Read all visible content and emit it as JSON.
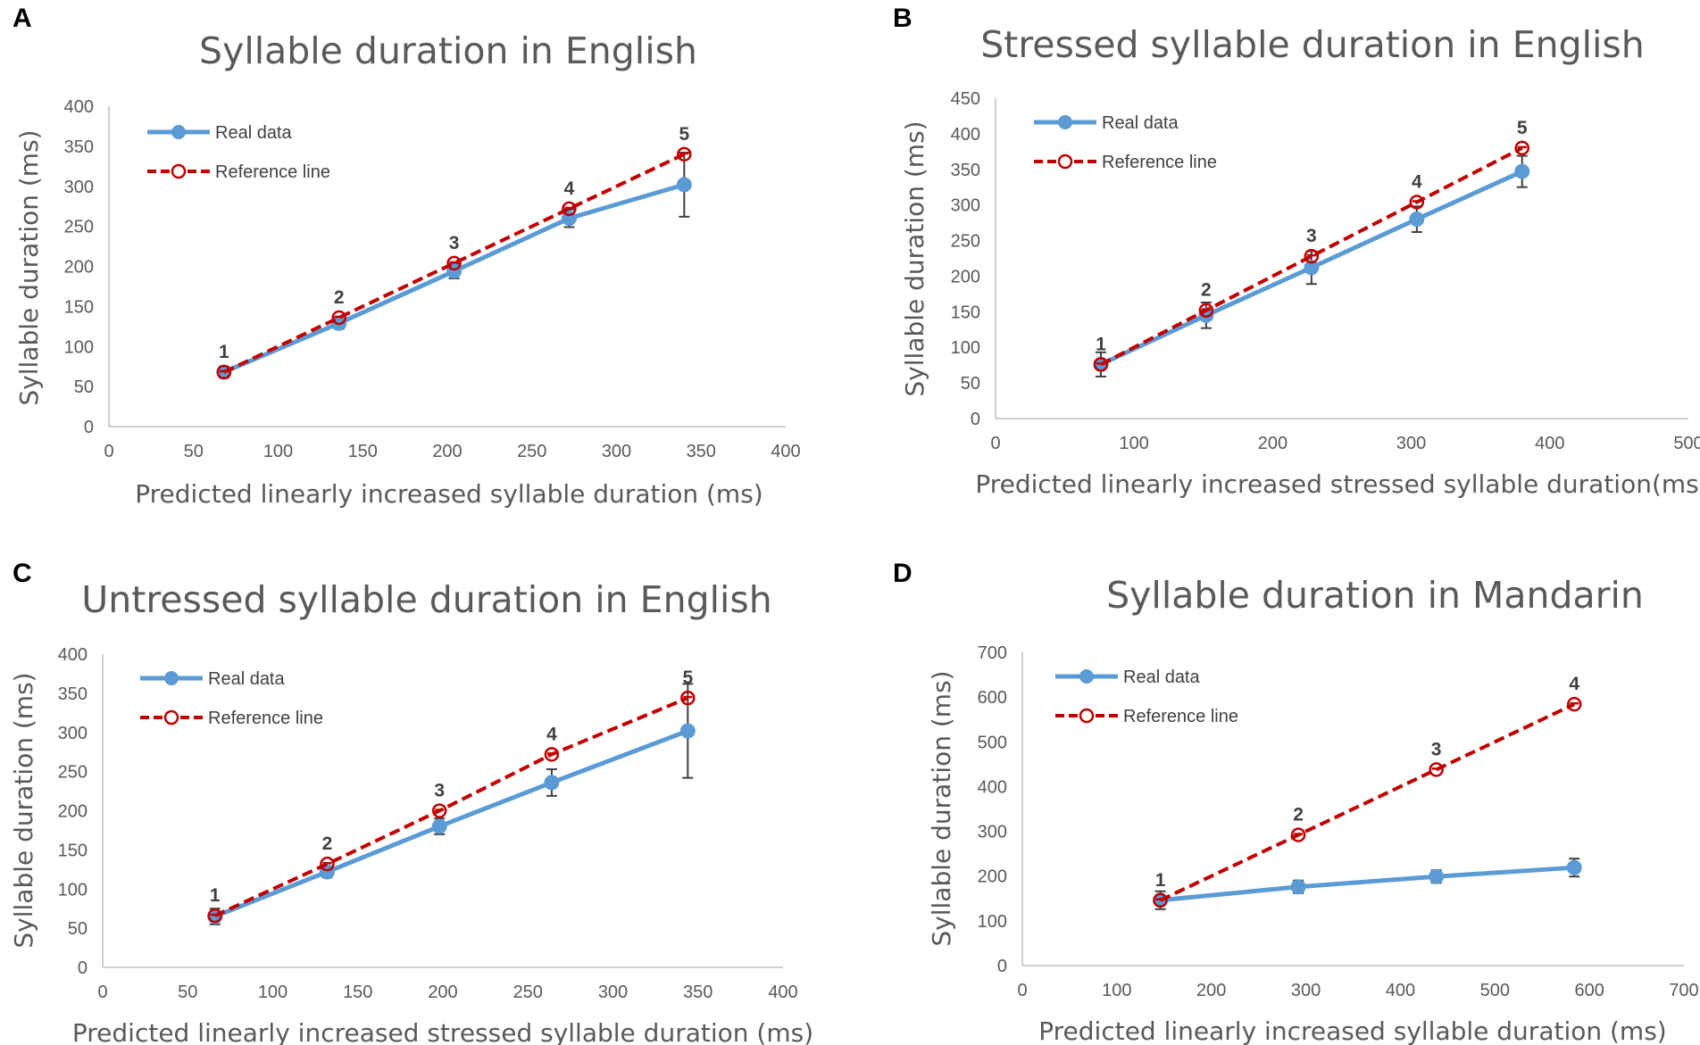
{
  "colors": {
    "real": "#5b9bd5",
    "reference": "#c00000",
    "axis": "#bfbfbf",
    "error": "#404040",
    "text": "#595959"
  },
  "chart_data": [
    {
      "panel": "A",
      "type": "scatter",
      "title": "Syllable duration in English",
      "xlabel": "Predicted linearly increased syllable duration (ms)",
      "ylabel": "Syllable duration (ms)",
      "xlim": [
        0,
        400
      ],
      "ylim": [
        0,
        400
      ],
      "xticks": [
        0,
        50,
        100,
        150,
        200,
        250,
        300,
        350,
        400
      ],
      "yticks": [
        0,
        50,
        100,
        150,
        200,
        250,
        300,
        350,
        400
      ],
      "legend": "top-left",
      "point_labels": [
        "1",
        "2",
        "3",
        "4",
        "5"
      ],
      "series": [
        {
          "name": "Real data",
          "x": [
            68,
            136,
            204,
            272,
            340
          ],
          "y": [
            68,
            129,
            194,
            260,
            302
          ],
          "err": [
            7,
            7,
            9,
            11,
            40
          ]
        },
        {
          "name": "Reference line",
          "x": [
            68,
            136,
            204,
            272,
            340
          ],
          "y": [
            68,
            136,
            204,
            272,
            340
          ]
        }
      ]
    },
    {
      "panel": "B",
      "type": "scatter",
      "title": "Stressed syllable duration in English",
      "xlabel": "Predicted linearly increased stressed syllable duration(ms)",
      "ylabel": "Syllable duration (ms)",
      "xlim": [
        0,
        500
      ],
      "ylim": [
        0,
        450
      ],
      "xticks": [
        0,
        100,
        200,
        300,
        400,
        500
      ],
      "yticks": [
        0,
        50,
        100,
        150,
        200,
        250,
        300,
        350,
        400,
        450
      ],
      "legend": "top-left",
      "point_labels": [
        "1",
        "2",
        "3",
        "4",
        "5"
      ],
      "series": [
        {
          "name": "Real data",
          "x": [
            76,
            152,
            228,
            304,
            380
          ],
          "y": [
            76,
            145,
            212,
            280,
            347
          ],
          "err": [
            17,
            18,
            23,
            18,
            22
          ]
        },
        {
          "name": "Reference line",
          "x": [
            76,
            152,
            228,
            304,
            380
          ],
          "y": [
            76,
            152,
            228,
            304,
            380
          ]
        }
      ]
    },
    {
      "panel": "C",
      "type": "scatter",
      "title": "Untressed syllable duration in English",
      "xlabel": "Predicted linearly increased stressed syllable duration (ms)",
      "ylabel": "Syllable duration (ms)",
      "xlim": [
        0,
        400
      ],
      "ylim": [
        0,
        400
      ],
      "xticks": [
        0,
        50,
        100,
        150,
        200,
        250,
        300,
        350,
        400
      ],
      "yticks": [
        0,
        50,
        100,
        150,
        200,
        250,
        300,
        350,
        400
      ],
      "legend": "top-left",
      "point_labels": [
        "1",
        "2",
        "3",
        "4",
        "5"
      ],
      "series": [
        {
          "name": "Real data",
          "x": [
            66,
            132,
            198,
            264,
            344
          ],
          "y": [
            65,
            122,
            180,
            236,
            302
          ],
          "err": [
            10,
            7,
            10,
            17,
            60
          ]
        },
        {
          "name": "Reference line",
          "x": [
            66,
            132,
            198,
            264,
            344
          ],
          "y": [
            66,
            132,
            200,
            272,
            344
          ]
        }
      ]
    },
    {
      "panel": "D",
      "type": "scatter",
      "title": "Syllable duration in Mandarin",
      "xlabel": "Predicted linearly increased syllable duration (ms)",
      "ylabel": "Syllable duration (ms)",
      "xlim": [
        0,
        700
      ],
      "ylim": [
        0,
        700
      ],
      "xticks": [
        0,
        100,
        200,
        300,
        400,
        500,
        600,
        700
      ],
      "yticks": [
        0,
        100,
        200,
        300,
        400,
        500,
        600,
        700
      ],
      "legend": "top-left",
      "point_labels": [
        "1",
        "2",
        "3",
        "4"
      ],
      "series": [
        {
          "name": "Real data",
          "x": [
            146,
            292,
            438,
            584
          ],
          "y": [
            146,
            176,
            199,
            219
          ],
          "err": [
            20,
            14,
            14,
            20
          ]
        },
        {
          "name": "Reference line",
          "x": [
            146,
            292,
            438,
            584
          ],
          "y": [
            146,
            292,
            438,
            584
          ]
        }
      ]
    }
  ]
}
